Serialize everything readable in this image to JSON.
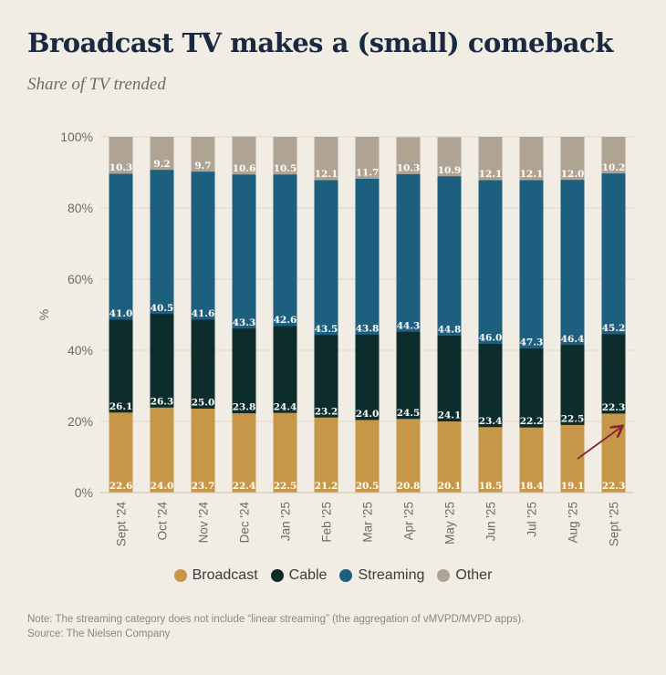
{
  "title": "Broadcast TV makes a (small) comeback",
  "subtitle": "Share of TV trended",
  "note": "Note: The streaming category does not include “linear streaming” (the aggregation of vMVPD/MVPD apps).",
  "source": "Source: The Nielsen Company",
  "colors": {
    "Broadcast": "#c69748",
    "Cable": "#0c2d2b",
    "Streaming": "#1d5f7f",
    "Other": "#afa393",
    "background": "#f2ede4",
    "arrow": "#8a2433"
  },
  "chart_data": {
    "type": "bar",
    "stacked": true,
    "ylabel": "%",
    "ylim": [
      0,
      100
    ],
    "yticks": [
      "0%",
      "20%",
      "40%",
      "60%",
      "80%",
      "100%"
    ],
    "grid": true,
    "legend_position": "bottom",
    "categories": [
      "Sept '24",
      "Oct '24",
      "Nov '24",
      "Dec '24",
      "Jan '25",
      "Feb '25",
      "Mar '25",
      "Apr '25",
      "May '25",
      "Jun '25",
      "Jul '25",
      "Aug '25",
      "Sept '25"
    ],
    "series": [
      {
        "name": "Broadcast",
        "values": [
          22.6,
          24.0,
          23.7,
          22.4,
          22.5,
          21.2,
          20.5,
          20.8,
          20.1,
          18.5,
          18.4,
          19.1,
          22.3
        ]
      },
      {
        "name": "Cable",
        "values": [
          26.1,
          26.3,
          25.0,
          23.8,
          24.4,
          23.2,
          24.0,
          24.5,
          24.1,
          23.4,
          22.2,
          22.5,
          22.3
        ]
      },
      {
        "name": "Streaming",
        "values": [
          41.0,
          40.5,
          41.6,
          43.3,
          42.6,
          43.5,
          43.8,
          44.3,
          44.8,
          46.0,
          47.3,
          46.4,
          45.2
        ]
      },
      {
        "name": "Other",
        "values": [
          10.3,
          9.2,
          9.7,
          10.6,
          10.5,
          12.1,
          11.7,
          10.3,
          10.9,
          12.1,
          12.1,
          12.0,
          10.2
        ]
      }
    ],
    "annotation": "upward arrow on Sept '25 broadcast bar"
  }
}
